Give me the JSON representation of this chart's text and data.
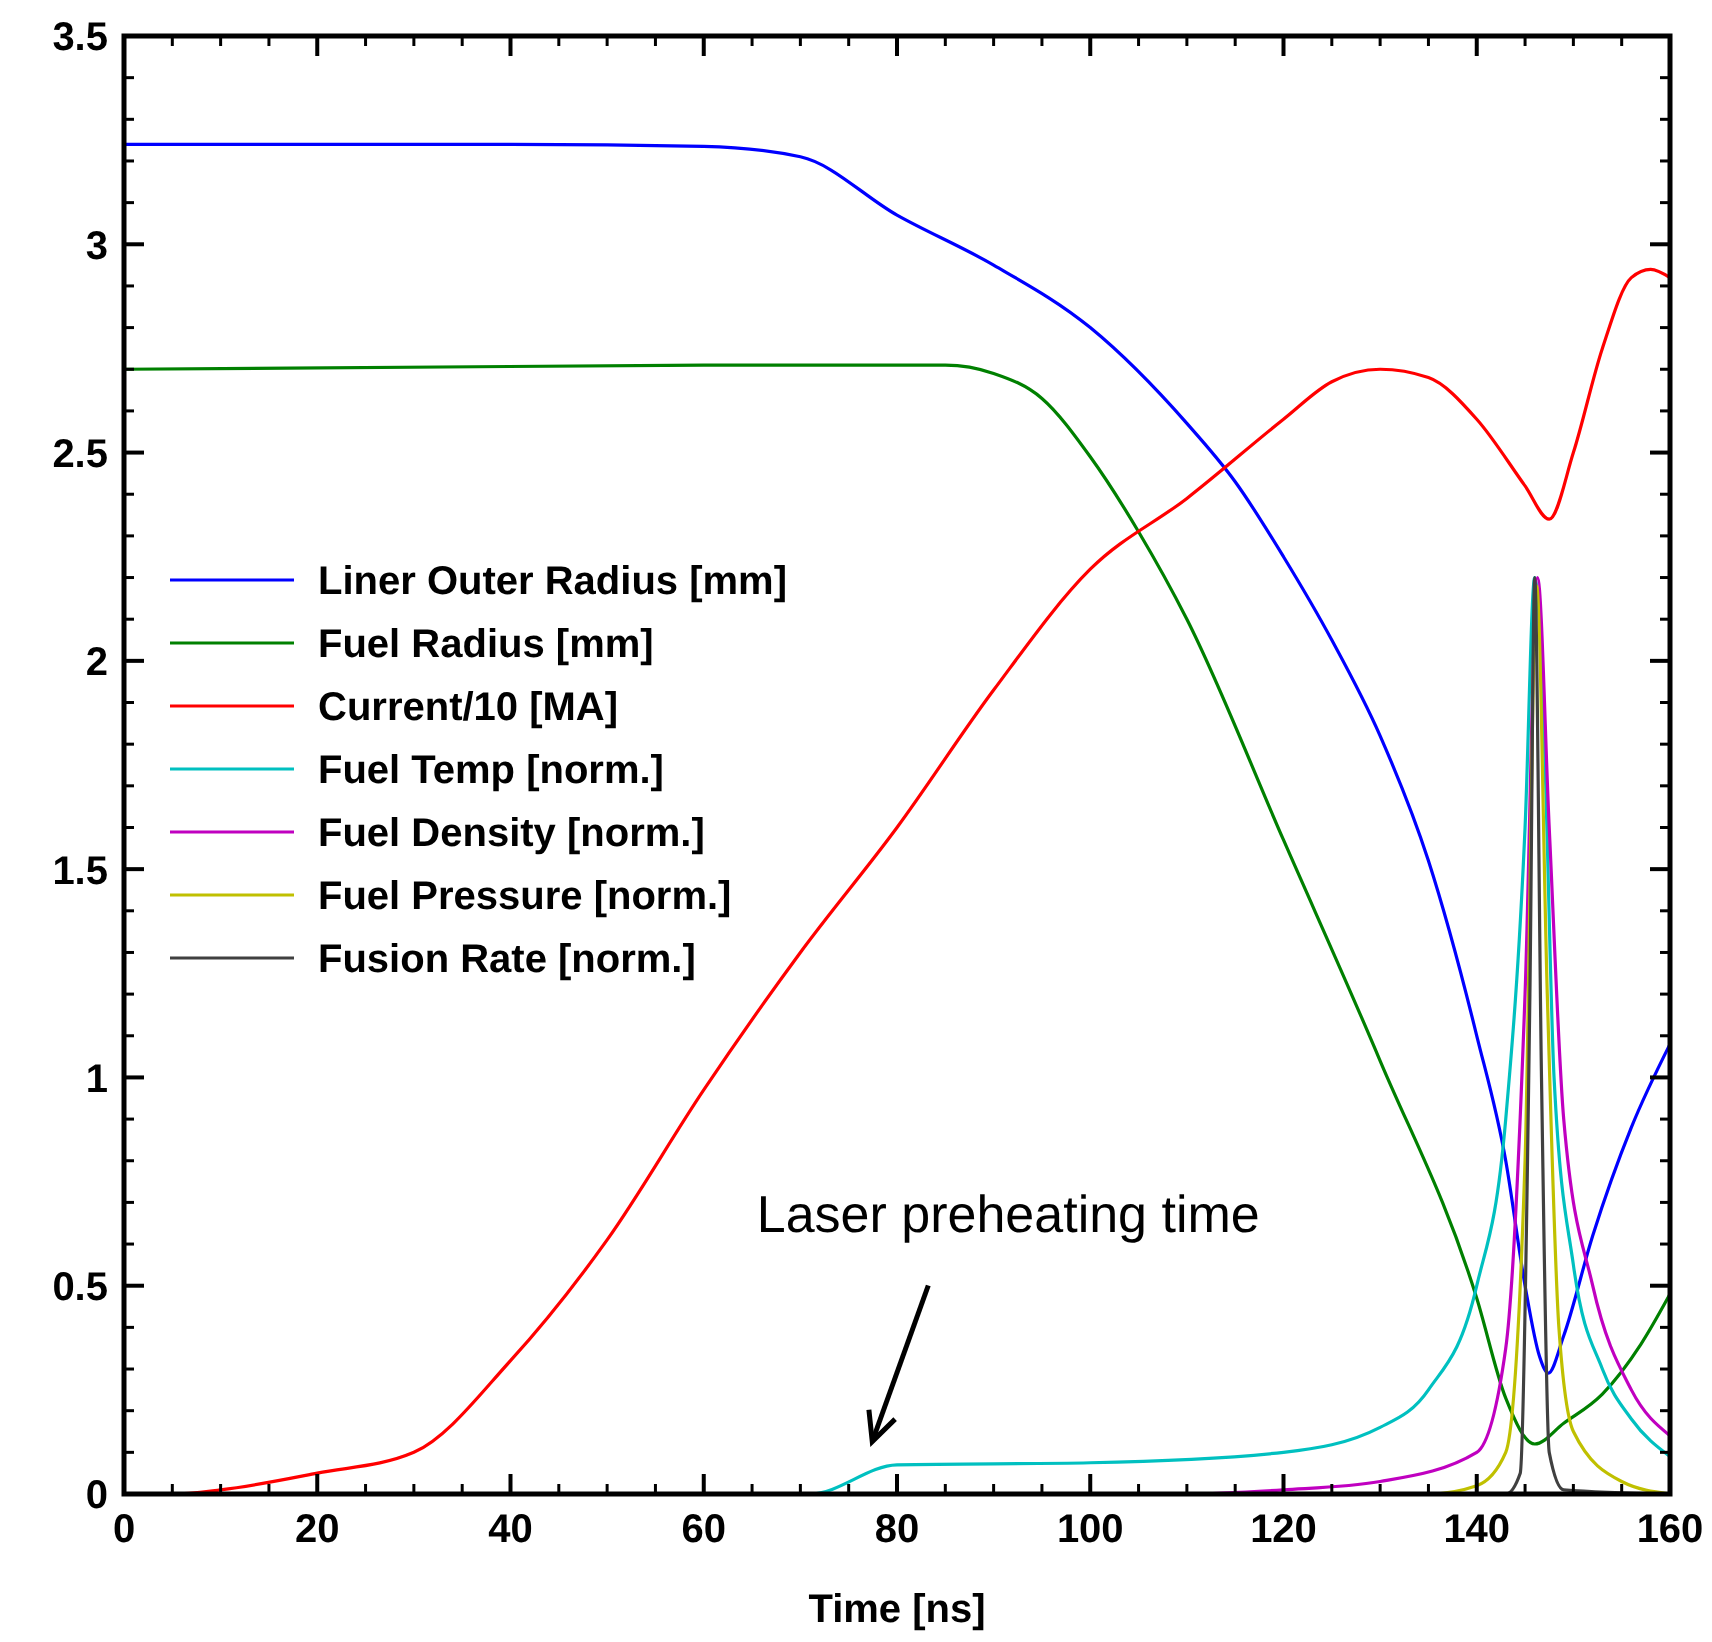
{
  "chart_data": {
    "type": "line",
    "xlabel": "Time [ns]",
    "xlim": [
      0,
      160
    ],
    "xticks": [
      0,
      20,
      40,
      60,
      80,
      100,
      120,
      140,
      160
    ],
    "ylim": [
      0,
      3.5
    ],
    "yticks": [
      0,
      0.5,
      1,
      1.5,
      2,
      2.5,
      3,
      3.5
    ],
    "grid": false,
    "legend": "left",
    "line_style": "solid",
    "annotations": [
      "Laser preheating time"
    ],
    "series": [
      {
        "name": "Liner Outer Radius [mm]",
        "color": "#0000ff",
        "x": [
          0,
          40,
          60,
          70,
          80,
          90,
          100,
          110,
          115,
          120,
          125,
          130,
          135,
          140,
          143,
          145,
          146.5,
          147.4,
          149,
          152,
          156,
          160
        ],
        "values": [
          3.24,
          3.24,
          3.235,
          3.21,
          3.07,
          2.95,
          2.8,
          2.57,
          2.43,
          2.25,
          2.05,
          1.82,
          1.52,
          1.1,
          0.8,
          0.5,
          0.33,
          0.29,
          0.38,
          0.62,
          0.88,
          1.08
        ]
      },
      {
        "name": "Fuel Radius [mm]",
        "color": "#008000",
        "x": [
          0,
          60,
          85,
          90,
          95,
          100,
          105,
          110,
          120,
          130,
          140,
          143,
          146,
          149,
          153,
          157,
          160
        ],
        "values": [
          2.7,
          2.71,
          2.71,
          2.69,
          2.63,
          2.49,
          2.31,
          2.1,
          1.57,
          1.04,
          0.47,
          0.23,
          0.12,
          0.17,
          0.24,
          0.36,
          0.48
        ]
      },
      {
        "name": "Current/10 [MA]",
        "color": "#ff0000",
        "x": [
          0,
          5,
          10,
          20,
          30,
          40,
          50,
          60,
          70,
          80,
          90,
          100,
          110,
          120,
          125,
          130,
          135,
          140,
          145,
          147.5,
          150,
          153,
          156,
          158,
          160
        ],
        "values": [
          0,
          0,
          0.01,
          0.05,
          0.1,
          0.32,
          0.61,
          0.97,
          1.3,
          1.6,
          1.93,
          2.22,
          2.39,
          2.58,
          2.67,
          2.7,
          2.68,
          2.58,
          2.42,
          2.34,
          2.5,
          2.75,
          2.92,
          2.94,
          2.92
        ]
      },
      {
        "name": "Fuel Temp [norm.]",
        "color": "#00c0c0",
        "x": [
          0,
          71,
          80,
          100,
          120,
          130,
          135,
          140,
          143,
          145,
          146,
          147,
          148,
          150,
          153,
          156,
          160
        ],
        "values": [
          0,
          0,
          0.07,
          0.075,
          0.1,
          0.16,
          0.25,
          0.5,
          0.9,
          1.6,
          2.2,
          1.8,
          1.0,
          0.55,
          0.3,
          0.18,
          0.09
        ]
      },
      {
        "name": "Fuel Density [norm.]",
        "color": "#c000c0",
        "x": [
          0,
          110,
          120,
          130,
          140,
          143,
          145,
          146.3,
          147.5,
          149,
          152,
          156,
          160
        ],
        "values": [
          0,
          0,
          0.01,
          0.03,
          0.1,
          0.35,
          1.2,
          2.2,
          1.6,
          0.9,
          0.5,
          0.25,
          0.14
        ]
      },
      {
        "name": "Fuel Pressure [norm.]",
        "color": "#c0c000",
        "x": [
          0,
          135,
          140,
          143,
          145,
          146.2,
          147.3,
          148.5,
          150,
          155,
          160
        ],
        "values": [
          0,
          0,
          0.02,
          0.1,
          0.8,
          2.18,
          1.2,
          0.4,
          0.15,
          0.03,
          0
        ]
      },
      {
        "name": "Fusion Rate [norm.]",
        "color": "#404040",
        "x": [
          0,
          143,
          144.5,
          145.5,
          146,
          146.7,
          147.5,
          149,
          160
        ],
        "values": [
          0,
          0,
          0.05,
          1.2,
          2.2,
          1.0,
          0.1,
          0.01,
          0
        ]
      }
    ]
  }
}
